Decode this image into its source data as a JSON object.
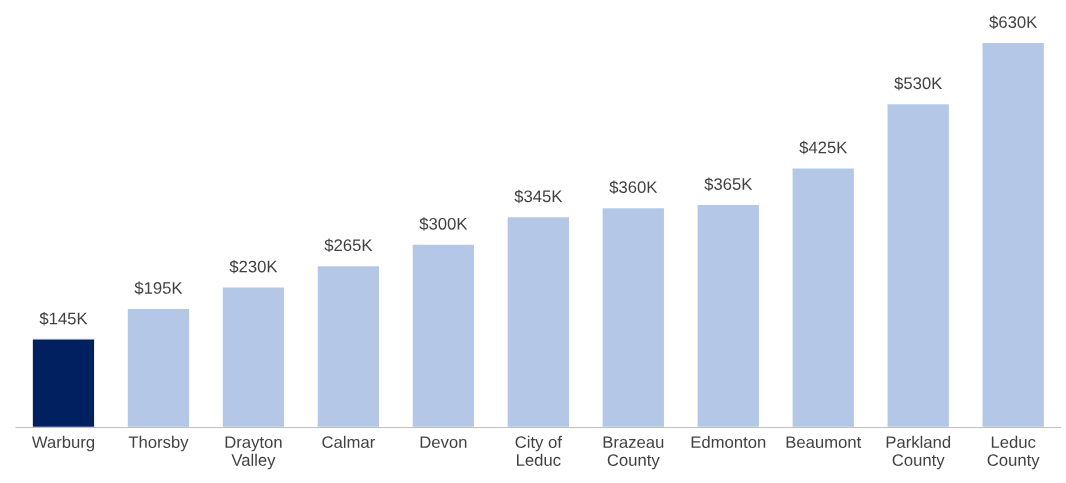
{
  "chart_data": {
    "type": "bar",
    "categories": [
      "Warburg",
      "Thorsby",
      "Drayton\nValley",
      "Calmar",
      "Devon",
      "City of\nLeduc",
      "Brazeau\nCounty",
      "Edmonton",
      "Beaumont",
      "Parkland\nCounty",
      "Leduc\nCounty"
    ],
    "values": [
      145,
      195,
      230,
      265,
      300,
      345,
      360,
      365,
      425,
      530,
      630
    ],
    "colors": [
      "#002060",
      "#b4c7e7",
      "#b4c7e7",
      "#b4c7e7",
      "#b4c7e7",
      "#b4c7e7",
      "#b4c7e7",
      "#b4c7e7",
      "#b4c7e7",
      "#b4c7e7",
      "#b4c7e7"
    ],
    "value_labels": [
      "$145K",
      "$195K",
      "$230K",
      "$265K",
      "$300K",
      "$345K",
      "$360K",
      "$365K",
      "$425K",
      "$530K",
      "$630K"
    ],
    "grid": false,
    "legend": false
  }
}
